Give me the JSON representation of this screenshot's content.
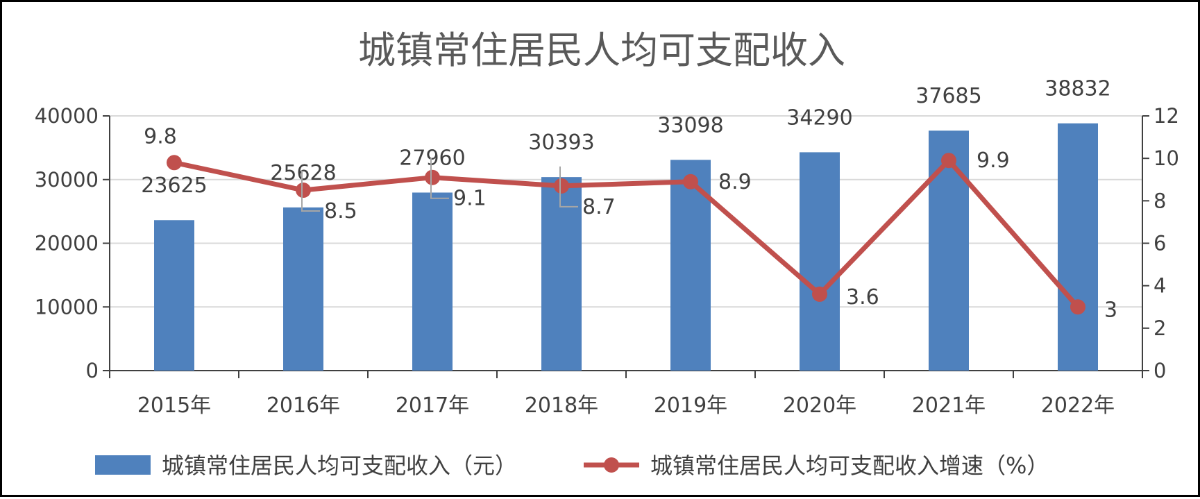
{
  "chart_data": {
    "type": "bar",
    "title": "城镇常住居民人均可支配收入",
    "categories": [
      "2015年",
      "2016年",
      "2017年",
      "2018年",
      "2019年",
      "2020年",
      "2021年",
      "2022年"
    ],
    "series": [
      {
        "name": "城镇常住居民人均可支配收入（元）",
        "type": "bar",
        "axis": "left",
        "color": "#4F81BD",
        "values": [
          23625,
          25628,
          27960,
          30393,
          33098,
          34290,
          37685,
          38832
        ],
        "labels": [
          "23625",
          "25628",
          "27960",
          "30393",
          "33098",
          "34290",
          "37685",
          "38832"
        ]
      },
      {
        "name": "城镇常住居民人均可支配收入增速（%）",
        "type": "line",
        "axis": "right",
        "color": "#C0504D",
        "values": [
          9.8,
          8.5,
          9.1,
          8.7,
          8.9,
          3.6,
          9.9,
          3
        ],
        "labels": [
          "9.8",
          "8.5",
          "9.1",
          "8.7",
          "8.9",
          "3.6",
          "9.9",
          "3"
        ]
      }
    ],
    "y_left": {
      "min": 0,
      "max": 40000,
      "ticks": [
        "0",
        "10000",
        "20000",
        "30000",
        "40000"
      ]
    },
    "y_right": {
      "min": 0,
      "max": 12,
      "ticks": [
        "0",
        "2",
        "4",
        "6",
        "8",
        "10",
        "12"
      ]
    },
    "grid": true,
    "legend": "bottom"
  }
}
